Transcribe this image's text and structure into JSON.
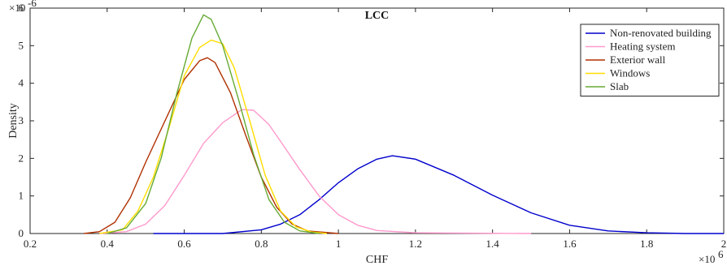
{
  "chart_data": {
    "type": "line",
    "title": "LCC",
    "xlabel": "CHF",
    "ylabel": "Density",
    "x_multiplier_label": "×10",
    "x_multiplier_exp": "6",
    "y_multiplier_label": "×10",
    "y_multiplier_exp": "-6",
    "xlim": [
      0.2,
      2.0
    ],
    "ylim": [
      0,
      6
    ],
    "x_ticks": [
      "0.2",
      "0.4",
      "0.6",
      "0.8",
      "1",
      "1.2",
      "1.4",
      "1.6",
      "1.8",
      "2"
    ],
    "y_ticks": [
      "0",
      "1",
      "2",
      "3",
      "4",
      "5",
      "6"
    ],
    "x_tick_values": [
      0.2,
      0.4,
      0.6,
      0.8,
      1.0,
      1.2,
      1.4,
      1.6,
      1.8,
      2.0
    ],
    "y_tick_values": [
      0,
      1,
      2,
      3,
      4,
      5,
      6
    ],
    "grid": false,
    "legend_position": "top-right",
    "series": [
      {
        "name": "Non-renovated building",
        "color": "#0000cc",
        "points": [
          [
            0.52,
            0
          ],
          [
            0.7,
            0.0
          ],
          [
            0.8,
            0.1
          ],
          [
            0.85,
            0.25
          ],
          [
            0.9,
            0.5
          ],
          [
            0.95,
            0.9
          ],
          [
            1.0,
            1.35
          ],
          [
            1.05,
            1.72
          ],
          [
            1.1,
            1.98
          ],
          [
            1.14,
            2.07
          ],
          [
            1.2,
            1.98
          ],
          [
            1.3,
            1.55
          ],
          [
            1.4,
            1.02
          ],
          [
            1.5,
            0.55
          ],
          [
            1.6,
            0.22
          ],
          [
            1.7,
            0.07
          ],
          [
            1.8,
            0.02
          ],
          [
            1.9,
            0.0
          ],
          [
            2.0,
            0.0
          ]
        ]
      },
      {
        "name": "Heating system",
        "color": "#ff99cc",
        "points": [
          [
            0.38,
            0
          ],
          [
            0.45,
            0.05
          ],
          [
            0.5,
            0.25
          ],
          [
            0.55,
            0.75
          ],
          [
            0.6,
            1.55
          ],
          [
            0.65,
            2.4
          ],
          [
            0.7,
            2.95
          ],
          [
            0.75,
            3.3
          ],
          [
            0.78,
            3.28
          ],
          [
            0.82,
            2.9
          ],
          [
            0.86,
            2.3
          ],
          [
            0.9,
            1.7
          ],
          [
            0.95,
            1.0
          ],
          [
            1.0,
            0.5
          ],
          [
            1.05,
            0.22
          ],
          [
            1.1,
            0.08
          ],
          [
            1.2,
            0.02
          ],
          [
            1.5,
            0.0
          ]
        ]
      },
      {
        "name": "Exterior wall",
        "color": "#b03000",
        "points": [
          [
            0.34,
            0
          ],
          [
            0.38,
            0.05
          ],
          [
            0.42,
            0.3
          ],
          [
            0.46,
            0.95
          ],
          [
            0.5,
            1.9
          ],
          [
            0.55,
            3.0
          ],
          [
            0.6,
            4.1
          ],
          [
            0.64,
            4.6
          ],
          [
            0.66,
            4.68
          ],
          [
            0.68,
            4.55
          ],
          [
            0.72,
            3.75
          ],
          [
            0.76,
            2.6
          ],
          [
            0.8,
            1.5
          ],
          [
            0.84,
            0.7
          ],
          [
            0.88,
            0.25
          ],
          [
            0.92,
            0.07
          ],
          [
            1.0,
            0.0
          ]
        ]
      },
      {
        "name": "Windows",
        "color": "#ffdd00",
        "points": [
          [
            0.38,
            0
          ],
          [
            0.44,
            0.1
          ],
          [
            0.48,
            0.6
          ],
          [
            0.52,
            1.5
          ],
          [
            0.56,
            2.8
          ],
          [
            0.6,
            4.2
          ],
          [
            0.64,
            4.95
          ],
          [
            0.67,
            5.15
          ],
          [
            0.7,
            5.05
          ],
          [
            0.73,
            4.4
          ],
          [
            0.77,
            3.0
          ],
          [
            0.81,
            1.55
          ],
          [
            0.85,
            0.6
          ],
          [
            0.89,
            0.18
          ],
          [
            0.93,
            0.04
          ],
          [
            0.97,
            0.0
          ]
        ]
      },
      {
        "name": "Slab",
        "color": "#66aa33",
        "points": [
          [
            0.4,
            0
          ],
          [
            0.45,
            0.15
          ],
          [
            0.5,
            0.8
          ],
          [
            0.54,
            2.0
          ],
          [
            0.58,
            3.7
          ],
          [
            0.62,
            5.2
          ],
          [
            0.65,
            5.82
          ],
          [
            0.67,
            5.7
          ],
          [
            0.7,
            5.0
          ],
          [
            0.74,
            3.6
          ],
          [
            0.78,
            2.1
          ],
          [
            0.82,
            0.9
          ],
          [
            0.86,
            0.3
          ],
          [
            0.9,
            0.07
          ],
          [
            0.95,
            0.0
          ]
        ]
      }
    ]
  }
}
